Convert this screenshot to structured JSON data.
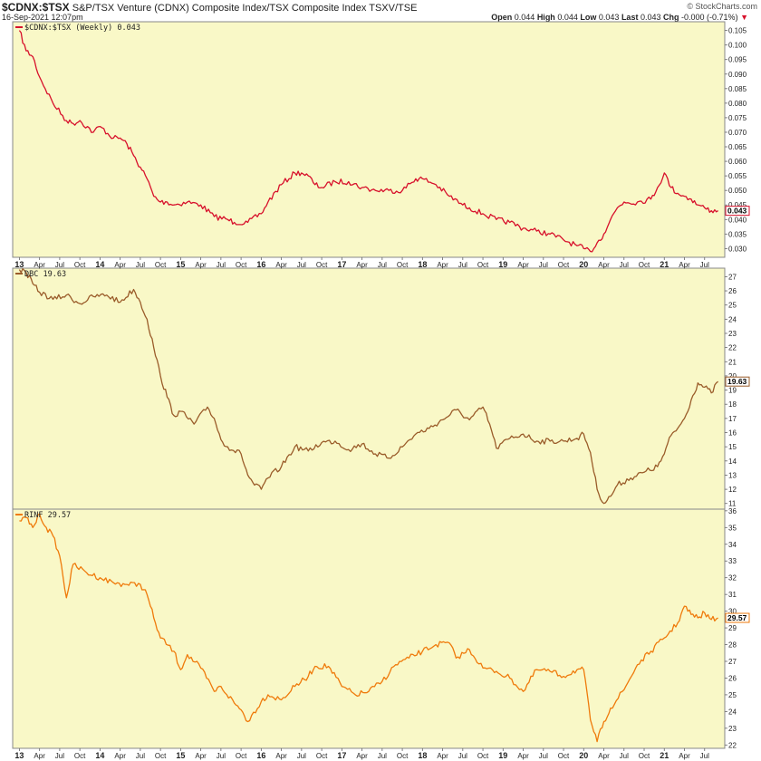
{
  "header": {
    "symbol": "$CDNX:$TSX",
    "description": "S&P/TSX Venture (CDNX) Composite Index/TSX Composite Index",
    "exchange": "TSXV/TSE",
    "date": "16-Sep-2021 12:07pm",
    "logo": "© StockCharts.com",
    "open_label": "Open",
    "open": "0.044",
    "high_label": "High",
    "high": "0.044",
    "low_label": "Low",
    "low": "0.043",
    "last_label": "Last",
    "last": "0.043",
    "chg_label": "Chg",
    "chg": "-0.000 (-0.71%)",
    "chg_arrow": "▼"
  },
  "colors": {
    "panel_bg": "#f9f8c7",
    "series1": "#d7102b",
    "series2": "#9a5c2a",
    "series3": "#ef7a0b",
    "border": "#888888"
  },
  "chart_data": [
    {
      "type": "line",
      "legend": "$CDNX:$TSX (Weekly) 0.043",
      "last_value": "0.043",
      "ylim": [
        0.027,
        0.108
      ],
      "y_ticks": [
        "0.105",
        "0.100",
        "0.095",
        "0.090",
        "0.085",
        "0.080",
        "0.075",
        "0.070",
        "0.065",
        "0.060",
        "0.055",
        "0.050",
        "0.045",
        "0.040",
        "0.035",
        "0.030"
      ],
      "x": [
        "2013-01",
        "2013-02",
        "2013-03",
        "2013-04",
        "2013-06",
        "2013-08",
        "2013-09",
        "2013-10",
        "2013-12",
        "2014-01",
        "2014-03",
        "2014-04",
        "2014-05",
        "2014-06",
        "2014-07",
        "2014-08",
        "2014-09",
        "2014-10",
        "2014-11",
        "2014-12",
        "2015-02",
        "2015-04",
        "2015-06",
        "2015-08",
        "2015-09",
        "2015-11",
        "2016-01",
        "2016-02",
        "2016-04",
        "2016-06",
        "2016-07",
        "2016-08",
        "2016-09",
        "2016-10",
        "2016-12",
        "2017-02",
        "2017-04",
        "2017-06",
        "2017-08",
        "2017-10",
        "2017-12",
        "2018-01",
        "2018-03",
        "2018-05",
        "2018-07",
        "2018-08",
        "2018-10",
        "2018-12",
        "2019-02",
        "2019-04",
        "2019-06",
        "2019-08",
        "2019-10",
        "2019-12",
        "2020-01",
        "2020-02",
        "2020-03",
        "2020-04",
        "2020-05",
        "2020-06",
        "2020-07",
        "2020-09",
        "2020-11",
        "2020-12",
        "2021-01",
        "2021-02",
        "2021-03",
        "2021-04",
        "2021-05",
        "2021-06",
        "2021-07",
        "2021-08",
        "2021-09"
      ],
      "values": [
        0.105,
        0.098,
        0.096,
        0.089,
        0.08,
        0.074,
        0.073,
        0.074,
        0.07,
        0.072,
        0.068,
        0.068,
        0.066,
        0.062,
        0.058,
        0.054,
        0.048,
        0.046,
        0.046,
        0.045,
        0.046,
        0.045,
        0.041,
        0.04,
        0.039,
        0.039,
        0.042,
        0.046,
        0.052,
        0.056,
        0.056,
        0.055,
        0.052,
        0.051,
        0.053,
        0.053,
        0.051,
        0.05,
        0.05,
        0.05,
        0.054,
        0.054,
        0.052,
        0.048,
        0.045,
        0.044,
        0.042,
        0.04,
        0.039,
        0.037,
        0.036,
        0.035,
        0.033,
        0.031,
        0.03,
        0.029,
        0.032,
        0.035,
        0.04,
        0.044,
        0.046,
        0.046,
        0.047,
        0.051,
        0.056,
        0.051,
        0.049,
        0.048,
        0.047,
        0.045,
        0.044,
        0.043,
        0.043
      ]
    },
    {
      "type": "line",
      "legend": "DBC 19.63",
      "last_value": "19.63",
      "ylim": [
        10.6,
        27.6
      ],
      "y_ticks": [
        "27",
        "26",
        "25",
        "24",
        "23",
        "22",
        "21",
        "20",
        "19",
        "18",
        "17",
        "16",
        "15",
        "14",
        "13",
        "12",
        "11"
      ],
      "x": [
        "2013-01",
        "2013-02",
        "2013-03",
        "2013-04",
        "2013-06",
        "2013-08",
        "2013-10",
        "2013-12",
        "2014-02",
        "2014-04",
        "2014-06",
        "2014-07",
        "2014-08",
        "2014-09",
        "2014-10",
        "2014-11",
        "2014-12",
        "2015-01",
        "2015-03",
        "2015-05",
        "2015-06",
        "2015-07",
        "2015-08",
        "2015-10",
        "2015-11",
        "2015-12",
        "2016-01",
        "2016-02",
        "2016-04",
        "2016-06",
        "2016-08",
        "2016-10",
        "2016-12",
        "2017-02",
        "2017-04",
        "2017-06",
        "2017-08",
        "2017-10",
        "2017-12",
        "2018-02",
        "2018-04",
        "2018-06",
        "2018-08",
        "2018-10",
        "2018-11",
        "2018-12",
        "2019-02",
        "2019-04",
        "2019-06",
        "2019-08",
        "2019-10",
        "2019-12",
        "2020-01",
        "2020-02",
        "2020-03",
        "2020-04",
        "2020-05",
        "2020-06",
        "2020-08",
        "2020-10",
        "2020-12",
        "2021-01",
        "2021-02",
        "2021-03",
        "2021-04",
        "2021-05",
        "2021-06",
        "2021-07",
        "2021-08",
        "2021-09"
      ],
      "values": [
        27.5,
        27.3,
        26.5,
        25.9,
        25.4,
        25.7,
        25.1,
        25.6,
        25.7,
        25.2,
        26.1,
        25.2,
        24.0,
        22.0,
        20.0,
        18.5,
        17.2,
        17.5,
        16.6,
        17.8,
        17.0,
        15.5,
        15.0,
        14.5,
        13.0,
        12.3,
        12.0,
        12.8,
        13.6,
        15.0,
        14.7,
        15.3,
        15.4,
        14.8,
        15.2,
        14.5,
        14.2,
        15.0,
        15.9,
        16.3,
        16.9,
        17.6,
        16.9,
        17.8,
        16.6,
        14.9,
        15.6,
        15.9,
        15.4,
        15.4,
        15.4,
        15.6,
        15.9,
        14.6,
        12.0,
        11.0,
        11.5,
        12.3,
        12.8,
        13.2,
        13.6,
        14.5,
        15.8,
        16.3,
        17.0,
        18.3,
        19.5,
        19.2,
        18.8,
        19.6
      ]
    },
    {
      "type": "line",
      "legend": "RINF 29.57",
      "last_value": "29.57",
      "ylim": [
        21.8,
        36.1
      ],
      "y_ticks": [
        "36",
        "35",
        "34",
        "33",
        "32",
        "31",
        "30",
        "29",
        "28",
        "27",
        "26",
        "25",
        "24",
        "23",
        "22"
      ],
      "x": [
        "2013-01",
        "2013-02",
        "2013-03",
        "2013-04",
        "2013-05",
        "2013-06",
        "2013-07",
        "2013-08",
        "2013-09",
        "2013-11",
        "2014-01",
        "2014-03",
        "2014-05",
        "2014-07",
        "2014-08",
        "2014-09",
        "2014-10",
        "2014-12",
        "2015-01",
        "2015-02",
        "2015-04",
        "2015-06",
        "2015-07",
        "2015-09",
        "2015-10",
        "2015-11",
        "2016-01",
        "2016-02",
        "2016-04",
        "2016-06",
        "2016-08",
        "2016-09",
        "2016-11",
        "2017-01",
        "2017-03",
        "2017-05",
        "2017-07",
        "2017-09",
        "2017-11",
        "2018-01",
        "2018-03",
        "2018-05",
        "2018-06",
        "2018-08",
        "2018-10",
        "2018-12",
        "2019-02",
        "2019-04",
        "2019-06",
        "2019-08",
        "2019-10",
        "2019-12",
        "2020-01",
        "2020-02",
        "2020-03",
        "2020-04",
        "2020-05",
        "2020-07",
        "2020-09",
        "2020-11",
        "2021-01",
        "2021-03",
        "2021-04",
        "2021-05",
        "2021-06",
        "2021-07",
        "2021-08",
        "2021-09"
      ],
      "values": [
        35.4,
        35.6,
        35.0,
        35.8,
        35.0,
        34.5,
        33.3,
        30.8,
        32.8,
        32.3,
        32.0,
        31.7,
        31.6,
        31.6,
        31.0,
        29.6,
        28.4,
        27.6,
        26.5,
        27.4,
        26.6,
        25.2,
        25.5,
        24.5,
        24.1,
        23.4,
        24.6,
        25.0,
        24.7,
        25.5,
        26.1,
        26.7,
        26.7,
        25.5,
        25.0,
        25.2,
        25.8,
        26.8,
        27.2,
        27.6,
        28.0,
        28.1,
        27.2,
        27.7,
        26.6,
        26.4,
        26.0,
        25.2,
        26.5,
        26.4,
        26.1,
        26.5,
        26.5,
        23.5,
        22.2,
        23.4,
        24.2,
        25.3,
        26.8,
        27.6,
        28.4,
        29.3,
        30.3,
        29.8,
        29.6,
        29.9,
        29.5,
        29.6
      ]
    }
  ],
  "x_axis_labels": [
    "13",
    "Apr",
    "Jul",
    "Oct",
    "14",
    "Apr",
    "Jul",
    "Oct",
    "15",
    "Apr",
    "Jul",
    "Oct",
    "16",
    "Apr",
    "Jul",
    "Oct",
    "17",
    "Apr",
    "Jul",
    "Oct",
    "18",
    "Apr",
    "Jul",
    "Oct",
    "19",
    "Apr",
    "Jul",
    "Oct",
    "20",
    "Apr",
    "Jul",
    "Oct",
    "21",
    "Apr",
    "Jul"
  ]
}
